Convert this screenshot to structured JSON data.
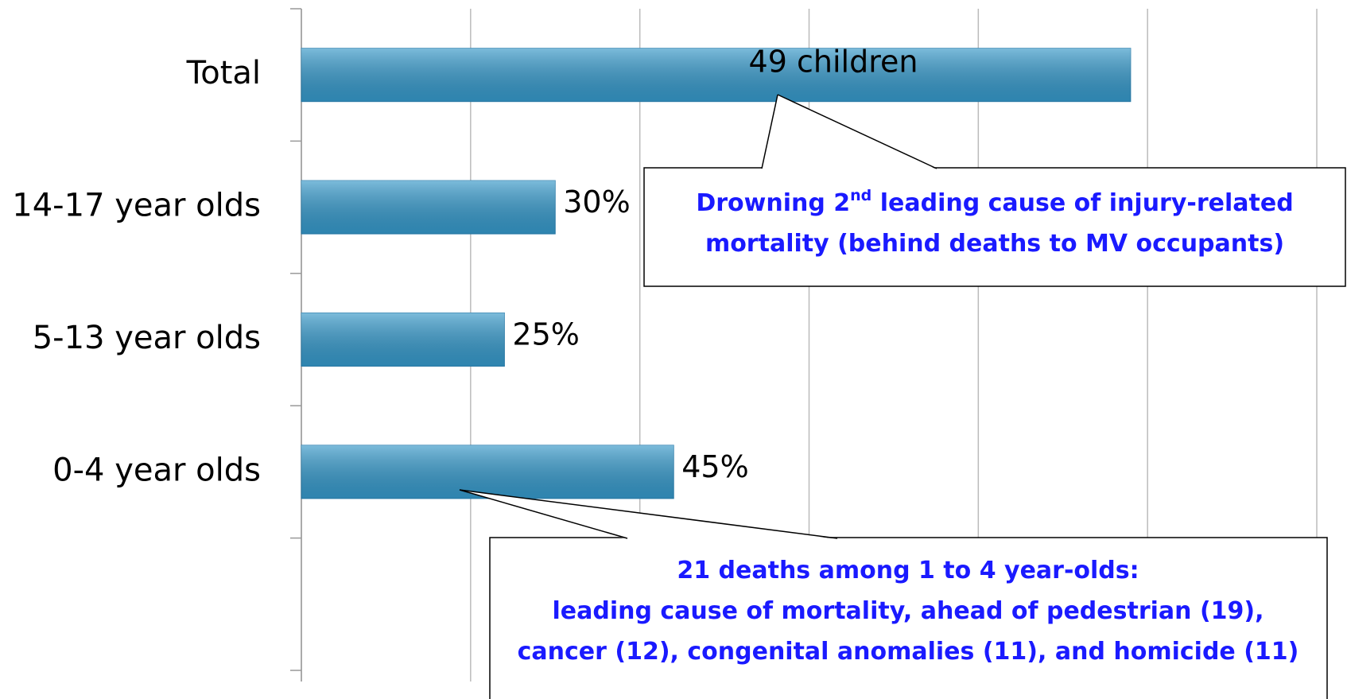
{
  "chart_data": {
    "type": "bar",
    "orientation": "horizontal",
    "categories": [
      "Total",
      "14-17 year olds",
      "5-13 year olds",
      "0-4 year olds",
      null
    ],
    "values": [
      49,
      15,
      12,
      22,
      null
    ],
    "bar_labels": [
      "49 children",
      "30%",
      "25%",
      "45%",
      null
    ],
    "color": "#3597c8",
    "xlim": [
      0,
      60
    ],
    "xticks": [
      0,
      10,
      20,
      30,
      40,
      50,
      60
    ],
    "grid": true,
    "annotations": [
      {
        "lines": [
          [
            "Drowning 2",
            "nd",
            " leading cause of injury-related"
          ],
          [
            "mortality (behind deaths to MV occupants)"
          ]
        ]
      },
      {
        "lines": [
          [
            "21 deaths among 1 to 4 year-olds:"
          ],
          [
            "leading cause of mortality, ahead of pedestrian (19),"
          ],
          [
            "cancer (12), congenital anomalies (11), and homicide (11)"
          ]
        ]
      }
    ],
    "annotation_color": "#1a1aff"
  }
}
